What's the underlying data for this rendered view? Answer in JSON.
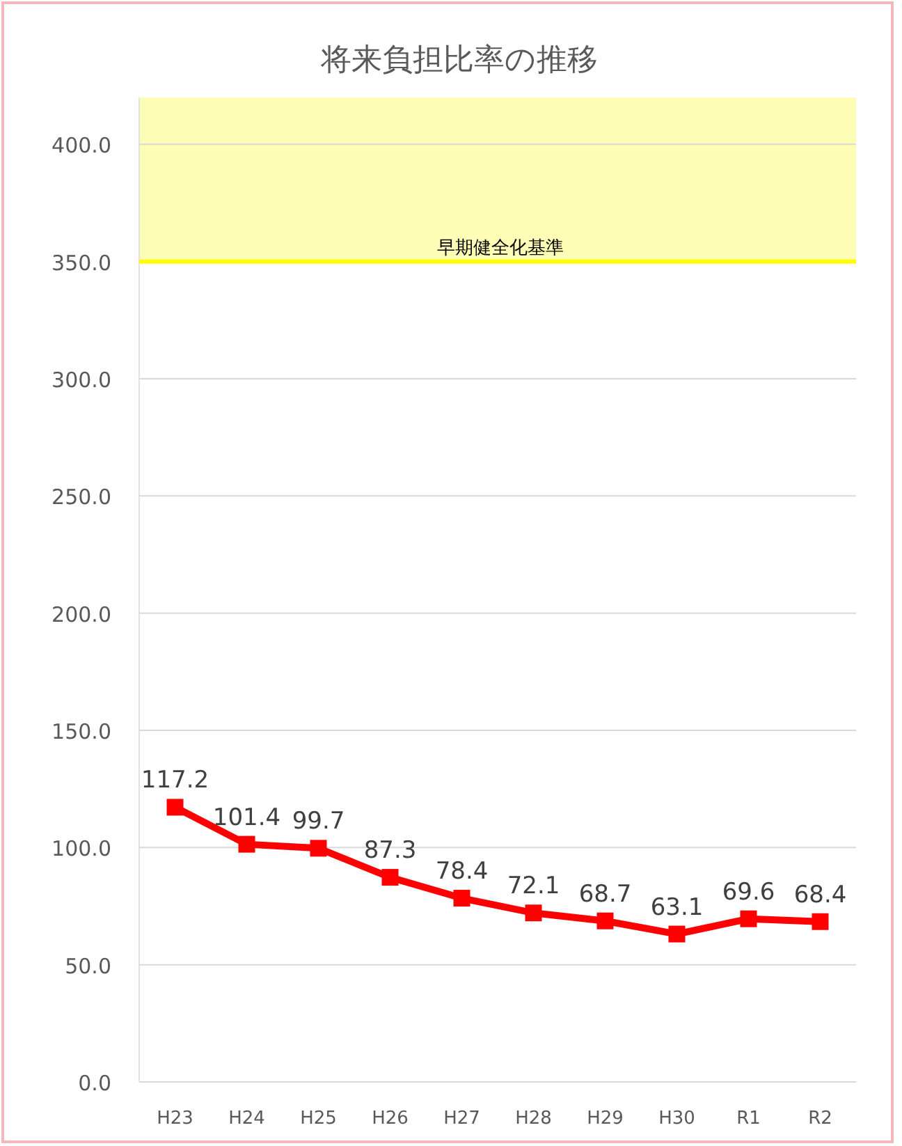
{
  "chart_data": {
    "type": "line",
    "title": "将来負担比率の推移",
    "categories": [
      "H23",
      "H24",
      "H25",
      "H26",
      "H27",
      "H28",
      "H29",
      "H30",
      "R1",
      "R2"
    ],
    "series": [
      {
        "color": "#ff0000",
        "values": [
          117.2,
          101.4,
          99.7,
          87.3,
          78.4,
          72.1,
          68.7,
          63.1,
          69.6,
          68.4
        ]
      }
    ],
    "ylim": [
      0,
      420
    ],
    "yticks": [
      {
        "value": 0,
        "label": "0.0"
      },
      {
        "value": 50,
        "label": "50.0"
      },
      {
        "value": 100,
        "label": "100.0"
      },
      {
        "value": 150,
        "label": "150.0"
      },
      {
        "value": 200,
        "label": "200.0"
      },
      {
        "value": 250,
        "label": "250.0"
      },
      {
        "value": 300,
        "label": "300.0"
      },
      {
        "value": 350,
        "label": "350.0"
      },
      {
        "value": 400,
        "label": "400.0"
      }
    ],
    "grid": "y",
    "marker": "square",
    "line_style": "solid",
    "data_labels": true,
    "bands": [
      {
        "axis": "y",
        "from": 350,
        "to": 420,
        "color": "#fdfdb5"
      }
    ],
    "ref_lines": [
      {
        "axis": "y",
        "value": 350,
        "label": "早期健全化基準",
        "color": "#ffff00"
      }
    ]
  }
}
